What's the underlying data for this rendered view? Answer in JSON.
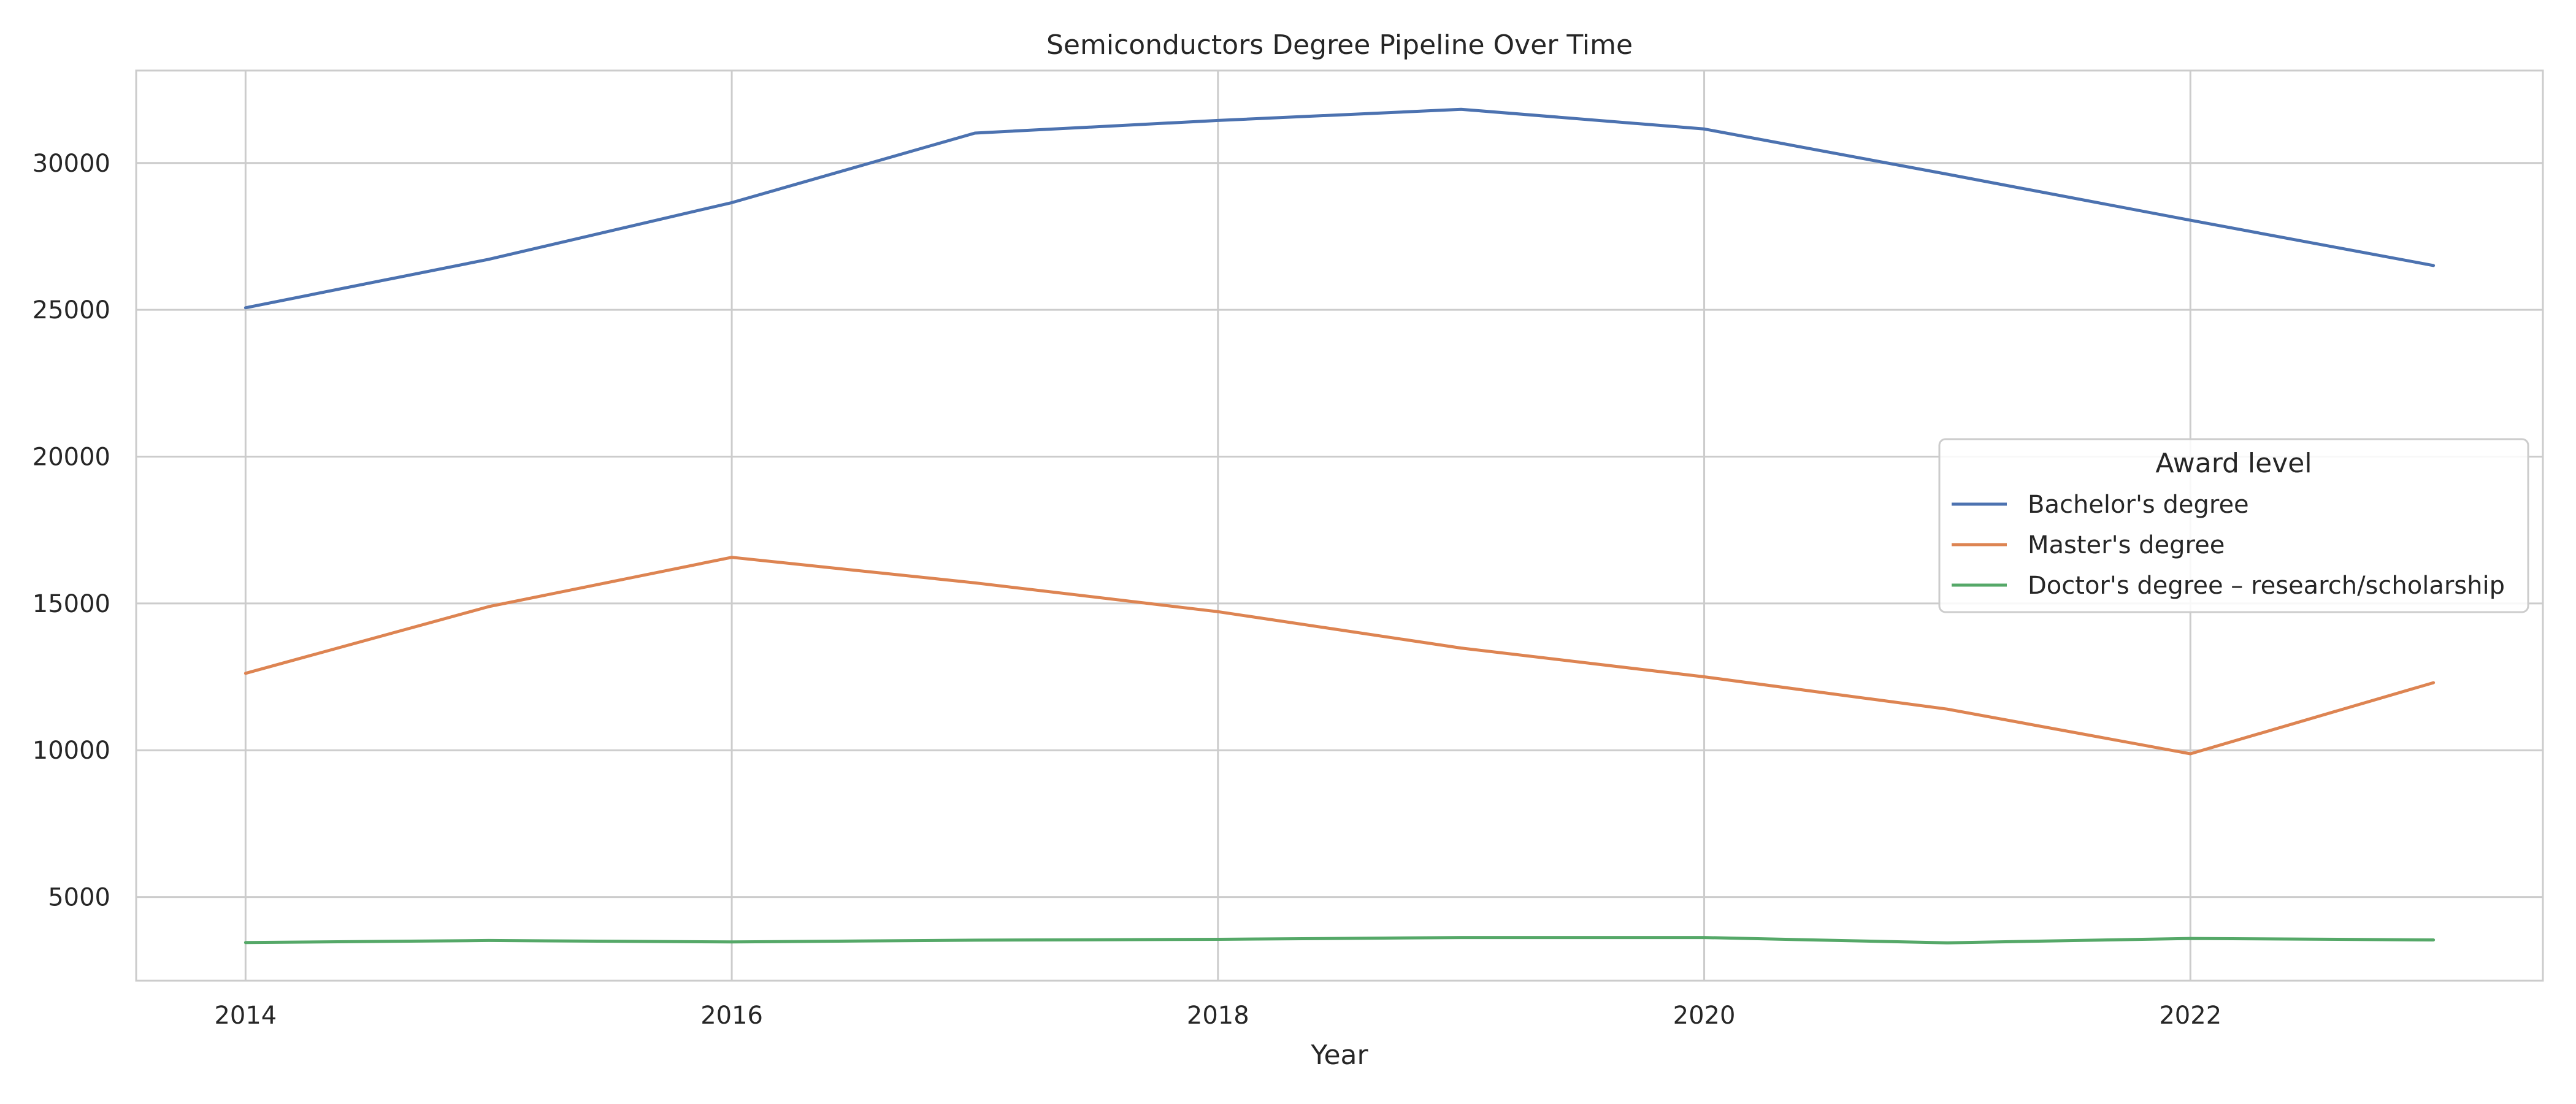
{
  "chart_data": {
    "type": "line",
    "title": "Semiconductors Degree Pipeline Over Time",
    "xlabel": "Year",
    "ylabel": "",
    "x": [
      2014,
      2015,
      2016,
      2017,
      2018,
      2019,
      2020,
      2021,
      2022,
      2023
    ],
    "xlim": [
      2013.55,
      2023.45
    ],
    "ylim": [
      2150,
      33150
    ],
    "x_ticks": [
      2014,
      2016,
      2018,
      2020,
      2022
    ],
    "y_ticks": [
      5000,
      10000,
      15000,
      20000,
      25000,
      30000
    ],
    "grid": true,
    "legend": {
      "title": "Award level",
      "placement": "center-right"
    },
    "series": [
      {
        "name": "Bachelor's degree",
        "color": "#4c72b0",
        "values": [
          25070,
          26720,
          28650,
          31020,
          31450,
          31830,
          31160,
          29620,
          28050,
          26510
        ]
      },
      {
        "name": "Master's degree",
        "color": "#dd8452",
        "values": [
          12620,
          14890,
          16570,
          15700,
          14720,
          13480,
          12500,
          11400,
          9880,
          12300
        ]
      },
      {
        "name": "Doctor's degree – research/scholarship",
        "color": "#55a868",
        "values": [
          3450,
          3520,
          3470,
          3530,
          3560,
          3620,
          3620,
          3440,
          3590,
          3540
        ]
      }
    ]
  }
}
